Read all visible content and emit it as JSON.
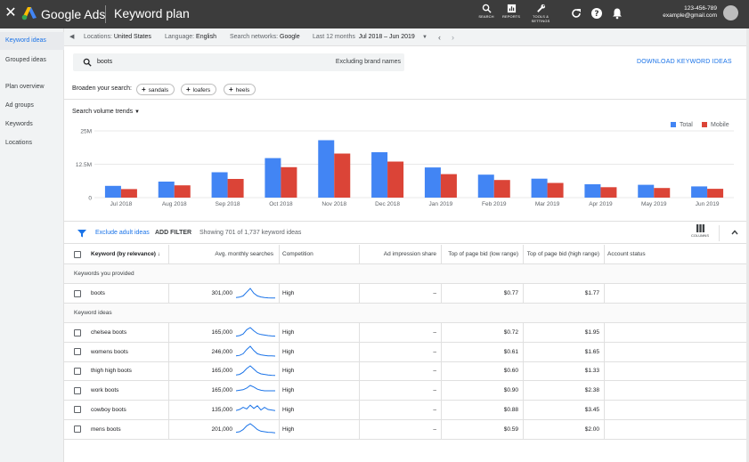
{
  "topbar": {
    "brand": "Google Ads",
    "title": "Keyword plan",
    "icons": [
      {
        "name": "search-icon",
        "label": "SEARCH"
      },
      {
        "name": "reports-icon",
        "label": "REPORTS"
      },
      {
        "name": "tools-icon",
        "label": "TOOLS &\nSETTINGS"
      }
    ],
    "account_id": "123-456-789",
    "account_email": "example@gmail.com"
  },
  "sidebar": {
    "items": [
      {
        "label": "Keyword ideas",
        "active": true
      },
      {
        "label": "Grouped ideas",
        "active": false
      },
      {
        "label": "Plan overview",
        "active": false
      },
      {
        "label": "Ad groups",
        "active": false
      },
      {
        "label": "Keywords",
        "active": false
      },
      {
        "label": "Locations",
        "active": false
      }
    ]
  },
  "filters": {
    "locations_label": "Locations:",
    "locations_value": "United States",
    "language_label": "Language:",
    "language_value": "English",
    "networks_label": "Search networks:",
    "networks_value": "Google",
    "period_label": "Last 12 months",
    "period_value": "Jul 2018 – Jun 2019"
  },
  "search": {
    "query": "boots",
    "excluding": "Excluding brand names",
    "download_label": "DOWNLOAD KEYWORD IDEAS"
  },
  "broaden": {
    "label": "Broaden your search:",
    "chips": [
      "sandals",
      "loafers",
      "heels"
    ]
  },
  "trend_dropdown": "Search volume trends",
  "chart_data": {
    "type": "bar",
    "categories": [
      "Jul 2018",
      "Aug 2018",
      "Sep 2018",
      "Oct 2018",
      "Nov 2018",
      "Dec 2018",
      "Jan 2019",
      "Feb 2019",
      "Mar 2019",
      "Apr 2019",
      "May 2019",
      "Jun 2019"
    ],
    "series": [
      {
        "name": "Total",
        "color": "#4285f4",
        "values": [
          4.4,
          6.0,
          9.5,
          14.8,
          21.5,
          17.0,
          11.3,
          8.6,
          7.1,
          5.0,
          4.8,
          4.2
        ]
      },
      {
        "name": "Mobile",
        "color": "#db4437",
        "values": [
          3.2,
          4.6,
          7.0,
          11.4,
          16.5,
          13.5,
          8.8,
          6.6,
          5.5,
          3.9,
          3.6,
          3.3
        ]
      }
    ],
    "yticks": [
      "0",
      "12.5M",
      "25M"
    ],
    "ylim": [
      0,
      25
    ],
    "legend_position": "top-right"
  },
  "table_tools": {
    "exclude_label": "Exclude adult ideas",
    "add_filter_label": "ADD FILTER",
    "showing_label": "Showing 701 of 1,737 keyword ideas",
    "columns_label": "COLUMNS"
  },
  "table": {
    "headers": {
      "keyword": "Keyword (by relevance)",
      "avg": "Avg. monthly searches",
      "competition": "Competition",
      "impression": "Ad impression share",
      "low": "Top of page bid (low range)",
      "high": "Top of page bid (high range)",
      "status": "Account status"
    },
    "provided_label": "Keywords you provided",
    "ideas_label": "Keyword ideas",
    "provided": [
      {
        "keyword": "boots",
        "avg": "301,000",
        "competition": "High",
        "impression": "–",
        "low": "$0.77",
        "high": "$1.77",
        "trend": [
          0.15,
          0.18,
          0.3,
          0.65,
          1.0,
          0.55,
          0.3,
          0.2,
          0.15,
          0.12,
          0.1,
          0.1
        ]
      }
    ],
    "ideas": [
      {
        "keyword": "chelsea boots",
        "avg": "165,000",
        "competition": "High",
        "impression": "–",
        "low": "$0.72",
        "high": "$1.95",
        "trend": [
          0.2,
          0.25,
          0.4,
          0.8,
          1.0,
          0.7,
          0.45,
          0.35,
          0.3,
          0.25,
          0.22,
          0.2
        ]
      },
      {
        "keyword": "womens boots",
        "avg": "246,000",
        "competition": "High",
        "impression": "–",
        "low": "$0.61",
        "high": "$1.65",
        "trend": [
          0.1,
          0.15,
          0.3,
          0.7,
          1.0,
          0.6,
          0.3,
          0.2,
          0.15,
          0.1,
          0.1,
          0.08
        ]
      },
      {
        "keyword": "thigh high boots",
        "avg": "165,000",
        "competition": "High",
        "impression": "–",
        "low": "$0.60",
        "high": "$1.33",
        "trend": [
          0.15,
          0.2,
          0.4,
          0.75,
          1.0,
          0.7,
          0.4,
          0.25,
          0.2,
          0.15,
          0.12,
          0.1
        ]
      },
      {
        "keyword": "work boots",
        "avg": "165,000",
        "competition": "High",
        "impression": "–",
        "low": "$0.90",
        "high": "$2.38",
        "trend": [
          0.5,
          0.55,
          0.6,
          0.75,
          1.0,
          0.85,
          0.65,
          0.55,
          0.5,
          0.5,
          0.5,
          0.5
        ]
      },
      {
        "keyword": "cowboy boots",
        "avg": "135,000",
        "competition": "High",
        "impression": "–",
        "low": "$0.88",
        "high": "$3.45",
        "trend": [
          0.4,
          0.5,
          0.7,
          0.55,
          0.9,
          0.6,
          0.85,
          0.45,
          0.7,
          0.5,
          0.45,
          0.4
        ]
      },
      {
        "keyword": "mens boots",
        "avg": "201,000",
        "competition": "High",
        "impression": "–",
        "low": "$0.59",
        "high": "$2.00",
        "trend": [
          0.2,
          0.25,
          0.45,
          0.8,
          1.0,
          0.75,
          0.45,
          0.3,
          0.25,
          0.2,
          0.18,
          0.15
        ]
      }
    ]
  }
}
